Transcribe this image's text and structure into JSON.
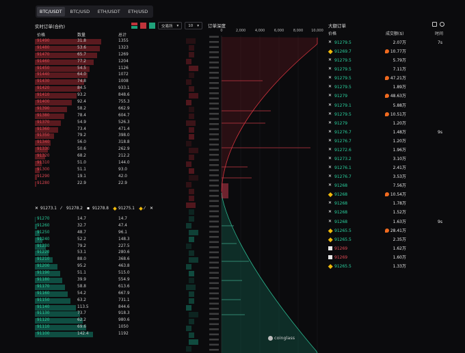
{
  "tabs": [
    {
      "label": "BTC/USDT",
      "active": true
    },
    {
      "label": "BTC/USD",
      "active": false
    },
    {
      "label": "ETH/USDT",
      "active": false
    },
    {
      "label": "ETH/USD",
      "active": false
    }
  ],
  "orderbook": {
    "title": "实时订单(合约)",
    "exchange_select": "交易所",
    "depth_select": "10",
    "col_price": "价格",
    "col_qty": "数量",
    "col_total": "总计",
    "asks": [
      {
        "price": "91490",
        "qty": "31.8",
        "total": "1355"
      },
      {
        "price": "91480",
        "qty": "53.6",
        "total": "1323"
      },
      {
        "price": "91470",
        "qty": "65.7",
        "total": "1269"
      },
      {
        "price": "91460",
        "qty": "77.2",
        "total": "1204"
      },
      {
        "price": "91450",
        "qty": "54.5",
        "total": "1126"
      },
      {
        "price": "91440",
        "qty": "64.0",
        "total": "1072"
      },
      {
        "price": "91430",
        "qty": "74.8",
        "total": "1008"
      },
      {
        "price": "91420",
        "qty": "84.5",
        "total": "933.1"
      },
      {
        "price": "91410",
        "qty": "93.2",
        "total": "848.6"
      },
      {
        "price": "91400",
        "qty": "92.4",
        "total": "755.3"
      },
      {
        "price": "91390",
        "qty": "58.2",
        "total": "662.9"
      },
      {
        "price": "91380",
        "qty": "78.4",
        "total": "604.7"
      },
      {
        "price": "91370",
        "qty": "54.9",
        "total": "526.3"
      },
      {
        "price": "91360",
        "qty": "73.4",
        "total": "471.4"
      },
      {
        "price": "91350",
        "qty": "79.2",
        "total": "398.0"
      },
      {
        "price": "91340",
        "qty": "56.0",
        "total": "318.8"
      },
      {
        "price": "91330",
        "qty": "50.6",
        "total": "262.9"
      },
      {
        "price": "91320",
        "qty": "68.2",
        "total": "212.2"
      },
      {
        "price": "91310",
        "qty": "51.0",
        "total": "144.0"
      },
      {
        "price": "91300",
        "qty": "51.1",
        "total": "93.0"
      },
      {
        "price": "91290",
        "qty": "19.1",
        "total": "42.0"
      },
      {
        "price": "91280",
        "qty": "22.9",
        "total": "22.9"
      }
    ],
    "ticker": [
      {
        "icon": "okx-icon",
        "value": "91273.1"
      },
      {
        "icon": "deribit-icon",
        "value": "91278.2"
      },
      {
        "icon": "coinbase-icon",
        "value": "91278.8"
      },
      {
        "icon": "binance-icon",
        "value": "91275.1"
      }
    ],
    "bids": [
      {
        "price": "91270",
        "qty": "14.7",
        "total": "14.7"
      },
      {
        "price": "91260",
        "qty": "32.7",
        "total": "47.4"
      },
      {
        "price": "91250",
        "qty": "48.7",
        "total": "96.1"
      },
      {
        "price": "91240",
        "qty": "52.2",
        "total": "148.3"
      },
      {
        "price": "91230",
        "qty": "79.2",
        "total": "227.5"
      },
      {
        "price": "91220",
        "qty": "53.1",
        "total": "280.6"
      },
      {
        "price": "91210",
        "qty": "88.0",
        "total": "368.6"
      },
      {
        "price": "91200",
        "qty": "95.2",
        "total": "463.8"
      },
      {
        "price": "91190",
        "qty": "51.1",
        "total": "515.0"
      },
      {
        "price": "91180",
        "qty": "39.9",
        "total": "554.9"
      },
      {
        "price": "91170",
        "qty": "58.8",
        "total": "613.6"
      },
      {
        "price": "91160",
        "qty": "54.2",
        "total": "667.9"
      },
      {
        "price": "91150",
        "qty": "63.2",
        "total": "731.1"
      },
      {
        "price": "91140",
        "qty": "113.5",
        "total": "844.6"
      },
      {
        "price": "91130",
        "qty": "73.7",
        "total": "918.3"
      },
      {
        "price": "91120",
        "qty": "62.2",
        "total": "980.6"
      },
      {
        "price": "91110",
        "qty": "69.6",
        "total": "1050"
      },
      {
        "price": "91100",
        "qty": "142.4",
        "total": "1192"
      }
    ]
  },
  "depth": {
    "title": "订单深度",
    "x_ticks": [
      "0",
      "2,000",
      "4,000",
      "6,000",
      "8,000",
      "10,000"
    ],
    "watermark": "coinglass"
  },
  "large_orders": {
    "title": "大额订单",
    "col_price": "价格",
    "col_amount": "成交额($)",
    "col_time": "时间",
    "rows": [
      {
        "ex": "okx",
        "price": "91279.5",
        "side": "buy",
        "amount": "2.07万",
        "hot": false,
        "time": "7s"
      },
      {
        "ex": "binance",
        "price": "91269.7",
        "side": "buy",
        "amount": "10.77万",
        "hot": true,
        "time": ""
      },
      {
        "ex": "okx",
        "price": "91279.5",
        "side": "buy",
        "amount": "5.79万",
        "hot": false,
        "time": ""
      },
      {
        "ex": "okx",
        "price": "91279.5",
        "side": "buy",
        "amount": "7.11万",
        "hot": false,
        "time": ""
      },
      {
        "ex": "okx",
        "price": "91279.5",
        "side": "buy",
        "amount": "47.21万",
        "hot": true,
        "time": ""
      },
      {
        "ex": "okx",
        "price": "91279.5",
        "side": "buy",
        "amount": "1.89万",
        "hot": false,
        "time": ""
      },
      {
        "ex": "okx",
        "price": "91279",
        "side": "buy",
        "amount": "48.63万",
        "hot": true,
        "time": ""
      },
      {
        "ex": "okx",
        "price": "91279.1",
        "side": "buy",
        "amount": "5.88万",
        "hot": false,
        "time": ""
      },
      {
        "ex": "okx",
        "price": "91279.5",
        "side": "buy",
        "amount": "10.51万",
        "hot": true,
        "time": ""
      },
      {
        "ex": "okx",
        "price": "91279",
        "side": "buy",
        "amount": "1.20万",
        "hot": false,
        "time": ""
      },
      {
        "ex": "okx",
        "price": "91276.7",
        "side": "buy",
        "amount": "1.48万",
        "hot": false,
        "time": "9s"
      },
      {
        "ex": "okx",
        "price": "91276.7",
        "side": "buy",
        "amount": "1.20万",
        "hot": false,
        "time": ""
      },
      {
        "ex": "okx",
        "price": "91272.6",
        "side": "buy",
        "amount": "1.96万",
        "hot": false,
        "time": ""
      },
      {
        "ex": "okx",
        "price": "91273.2",
        "side": "buy",
        "amount": "3.10万",
        "hot": false,
        "time": ""
      },
      {
        "ex": "okx",
        "price": "91276.1",
        "side": "buy",
        "amount": "2.41万",
        "hot": false,
        "time": ""
      },
      {
        "ex": "okx",
        "price": "91276.7",
        "side": "buy",
        "amount": "3.53万",
        "hot": false,
        "time": ""
      },
      {
        "ex": "okx",
        "price": "91268",
        "side": "buy",
        "amount": "7.56万",
        "hot": false,
        "time": ""
      },
      {
        "ex": "binance",
        "price": "91268",
        "side": "buy",
        "amount": "10.54万",
        "hot": true,
        "time": ""
      },
      {
        "ex": "okx",
        "price": "91268",
        "side": "buy",
        "amount": "1.78万",
        "hot": false,
        "time": ""
      },
      {
        "ex": "okx",
        "price": "91268",
        "side": "buy",
        "amount": "1.52万",
        "hot": false,
        "time": ""
      },
      {
        "ex": "okx",
        "price": "91268",
        "side": "buy",
        "amount": "1.63万",
        "hot": false,
        "time": "9s"
      },
      {
        "ex": "binance",
        "price": "91265.5",
        "side": "buy",
        "amount": "28.41万",
        "hot": true,
        "time": ""
      },
      {
        "ex": "binance",
        "price": "91265.5",
        "side": "buy",
        "amount": "2.35万",
        "hot": false,
        "time": ""
      },
      {
        "ex": "coinbase",
        "price": "91269",
        "side": "sell",
        "amount": "1.62万",
        "hot": false,
        "time": ""
      },
      {
        "ex": "coinbase",
        "price": "91269",
        "side": "sell",
        "amount": "1.60万",
        "hot": false,
        "time": ""
      },
      {
        "ex": "binance",
        "price": "91265.5",
        "side": "buy",
        "amount": "1.33万",
        "hot": false,
        "time": ""
      }
    ]
  },
  "colors": {
    "ask": "#e54b56",
    "bid": "#2bd3a0",
    "ask_bar": "#5a1a1f",
    "bid_bar": "#0f4e42"
  }
}
